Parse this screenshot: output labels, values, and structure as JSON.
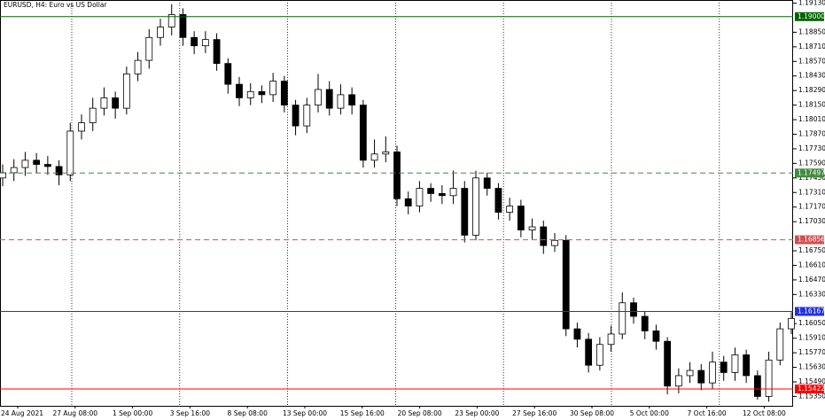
{
  "chart_data": {
    "type": "candlestick",
    "title": "EURUSD, H4:  Euro vs US Dollar",
    "ylim": [
      1.1526,
      1.1916
    ],
    "yticks": [
      {
        "value": 1.1913,
        "label": "1.19130"
      },
      {
        "value": 1.1885,
        "label": "1.18850"
      },
      {
        "value": 1.1871,
        "label": "1.18710"
      },
      {
        "value": 1.1857,
        "label": "1.18570"
      },
      {
        "value": 1.1843,
        "label": "1.18430"
      },
      {
        "value": 1.1829,
        "label": "1.18290"
      },
      {
        "value": 1.1815,
        "label": "1.18150"
      },
      {
        "value": 1.1801,
        "label": "1.18010"
      },
      {
        "value": 1.1787,
        "label": "1.17870"
      },
      {
        "value": 1.1773,
        "label": "1.17730"
      },
      {
        "value": 1.1759,
        "label": "1.17590"
      },
      {
        "value": 1.1745,
        "label": "1.17450"
      },
      {
        "value": 1.1731,
        "label": "1.17310"
      },
      {
        "value": 1.1717,
        "label": "1.17170"
      },
      {
        "value": 1.1703,
        "label": "1.17030"
      },
      {
        "value": 1.1675,
        "label": "1.16750"
      },
      {
        "value": 1.1661,
        "label": "1.16610"
      },
      {
        "value": 1.1647,
        "label": "1.16470"
      },
      {
        "value": 1.1633,
        "label": "1.16330"
      },
      {
        "value": 1.1605,
        "label": "1.16050"
      },
      {
        "value": 1.1591,
        "label": "1.15910"
      },
      {
        "value": 1.1577,
        "label": "1.15770"
      },
      {
        "value": 1.1563,
        "label": "1.15630"
      },
      {
        "value": 1.1549,
        "label": "1.15490"
      },
      {
        "value": 1.1535,
        "label": "1.15350"
      }
    ],
    "levels": [
      {
        "value": 1.19,
        "label": "1.19000",
        "color": "#006400",
        "dashed": false
      },
      {
        "value": 1.17497,
        "color": "#3c8c3c",
        "dashed": true
      },
      {
        "value": 1.16856,
        "color": "#d05050",
        "dashed": true
      },
      {
        "value": 1.16167,
        "color": "#2030e0",
        "dashed": false
      },
      {
        "value": 1.15422,
        "color": "#ff0000",
        "dashed": false
      }
    ],
    "x_labels": [
      "24 Aug 2021",
      "27 Aug 08:00",
      "1 Sep 00:00",
      "3 Sep 16:00",
      "8 Sep 08:00",
      "13 Sep 00:00",
      "15 Sep 16:00",
      "20 Sep 08:00",
      "23 Sep 00:00",
      "27 Sep 16:00",
      "30 Sep 08:00",
      "5 Oct 00:00",
      "7 Oct 16:00",
      "12 Oct 08:00"
    ],
    "open": [
      1.1745,
      1.175,
      1.1755,
      1.1762,
      1.1758,
      1.1756,
      1.1748,
      1.179,
      1.1798,
      1.1812,
      1.1822,
      1.1812,
      1.1845,
      1.1858,
      1.188,
      1.189,
      1.1902,
      1.188,
      1.1872,
      1.1878,
      1.1855,
      1.1835,
      1.1822,
      1.1828,
      1.1825,
      1.1838,
      1.1815,
      1.1795,
      1.1815,
      1.183,
      1.1812,
      1.1825,
      1.1815,
      1.1762,
      1.1768,
      1.177,
      1.1725,
      1.1718,
      1.1735,
      1.173,
      1.1728,
      1.1735,
      1.169,
      1.1745,
      1.1735,
      1.1712,
      1.1718,
      1.1695,
      1.1698,
      1.168,
      1.1685,
      1.16,
      1.159,
      1.1565,
      1.1585,
      1.1595,
      1.1625,
      1.1612,
      1.1598,
      1.1588,
      1.1545,
      1.1555,
      1.156,
      1.1548,
      1.1568,
      1.1558,
      1.1575,
      1.1555,
      1.1535,
      1.157,
      1.16
    ],
    "high": [
      1.1758,
      1.1763,
      1.177,
      1.1769,
      1.1766,
      1.1762,
      1.1798,
      1.1806,
      1.1822,
      1.1832,
      1.1828,
      1.1852,
      1.1866,
      1.1888,
      1.1898,
      1.1912,
      1.1908,
      1.1886,
      1.1886,
      1.1884,
      1.186,
      1.1842,
      1.1836,
      1.1834,
      1.1846,
      1.1843,
      1.182,
      1.1822,
      1.1845,
      1.1838,
      1.1835,
      1.1832,
      1.182,
      1.1782,
      1.1785,
      1.1776,
      1.1732,
      1.1742,
      1.174,
      1.1738,
      1.1752,
      1.1742,
      1.1752,
      1.175,
      1.174,
      1.1726,
      1.1724,
      1.1706,
      1.1704,
      1.1692,
      1.169,
      1.1606,
      1.1596,
      1.1592,
      1.1603,
      1.1635,
      1.163,
      1.1617,
      1.1604,
      1.1592,
      1.1562,
      1.1568,
      1.1566,
      1.1578,
      1.1574,
      1.1582,
      1.158,
      1.156,
      1.1578,
      1.1606,
      1.1616
    ],
    "low": [
      1.1737,
      1.1742,
      1.1747,
      1.175,
      1.1748,
      1.1738,
      1.1742,
      1.1782,
      1.179,
      1.1805,
      1.1802,
      1.1806,
      1.1838,
      1.185,
      1.1872,
      1.1882,
      1.1872,
      1.1864,
      1.1865,
      1.1848,
      1.1826,
      1.1814,
      1.1815,
      1.1817,
      1.1818,
      1.1808,
      1.1786,
      1.1788,
      1.1808,
      1.1805,
      1.1806,
      1.1806,
      1.1755,
      1.1755,
      1.176,
      1.1718,
      1.171,
      1.1712,
      1.1722,
      1.172,
      1.172,
      1.1683,
      1.1685,
      1.1728,
      1.1705,
      1.1704,
      1.1688,
      1.1686,
      1.1672,
      1.1674,
      1.1593,
      1.1582,
      1.1558,
      1.156,
      1.1578,
      1.159,
      1.1605,
      1.159,
      1.158,
      1.1537,
      1.1538,
      1.1548,
      1.1541,
      1.1542,
      1.155,
      1.155,
      1.1548,
      1.1532,
      1.153,
      1.1565,
      1.1595
    ],
    "close": [
      1.175,
      1.1755,
      1.1762,
      1.1758,
      1.1756,
      1.1748,
      1.179,
      1.1798,
      1.1812,
      1.1822,
      1.1812,
      1.1845,
      1.1858,
      1.188,
      1.189,
      1.1902,
      1.188,
      1.1872,
      1.1878,
      1.1855,
      1.1835,
      1.1822,
      1.1828,
      1.1825,
      1.1838,
      1.1815,
      1.1795,
      1.1815,
      1.183,
      1.1812,
      1.1825,
      1.1815,
      1.1762,
      1.1768,
      1.177,
      1.1725,
      1.1718,
      1.1735,
      1.173,
      1.1728,
      1.1735,
      1.169,
      1.1745,
      1.1735,
      1.1712,
      1.1718,
      1.1695,
      1.1698,
      1.168,
      1.1685,
      1.16,
      1.159,
      1.1565,
      1.1585,
      1.1595,
      1.1625,
      1.1612,
      1.1598,
      1.1588,
      1.1545,
      1.1555,
      1.156,
      1.1548,
      1.1568,
      1.1558,
      1.1575,
      1.1555,
      1.1535,
      1.157,
      1.16,
      1.161
    ]
  }
}
